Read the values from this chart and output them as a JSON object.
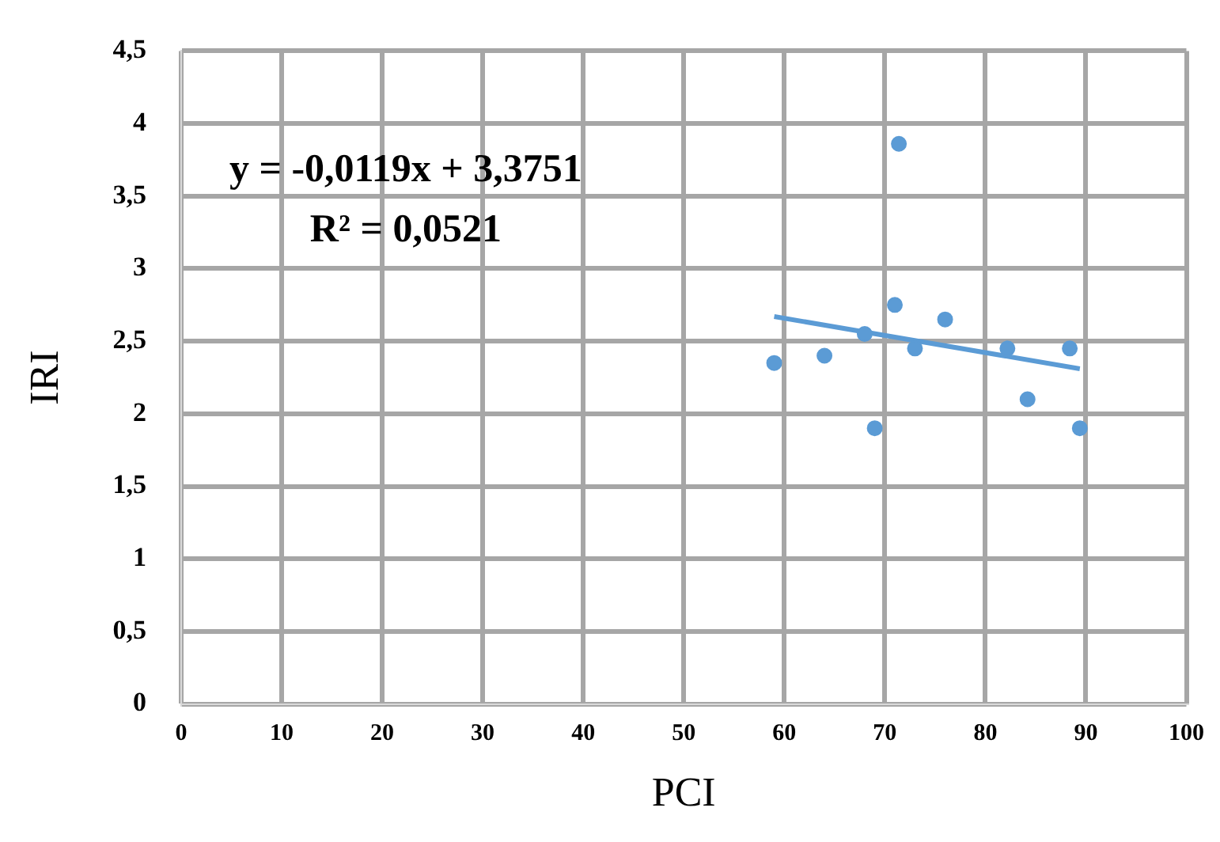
{
  "chart_data": {
    "type": "scatter",
    "xlabel": "PCI",
    "ylabel": "IRI",
    "annotations": [
      "y = -0,0119x + 3,3751",
      "R² = 0,0521"
    ],
    "xlim": [
      0,
      100
    ],
    "xticks": [
      0,
      10,
      20,
      30,
      40,
      50,
      60,
      70,
      80,
      90,
      100
    ],
    "ylim": [
      0,
      4.5
    ],
    "yticks": [
      0,
      {
        "value": 0.5,
        "label": "0,5"
      },
      1,
      {
        "value": 1.5,
        "label": "1,5"
      },
      2,
      {
        "value": 2.5,
        "label": "2,5"
      },
      3,
      {
        "value": 3.5,
        "label": "3,5"
      },
      4,
      {
        "value": 4.5,
        "label": "4,5"
      }
    ],
    "grid": true,
    "legend": false,
    "series": [
      {
        "marker": "circle",
        "color": "#5b9bd5",
        "x": [
          59,
          64,
          68,
          69,
          71,
          71.4,
          73,
          76,
          82.2,
          84.2,
          88.4,
          89.4
        ],
        "values": [
          2.35,
          2.4,
          2.55,
          1.9,
          2.75,
          3.86,
          2.45,
          2.65,
          2.45,
          2.1,
          2.45,
          1.9
        ]
      },
      {
        "type": "line",
        "color": "#5b9bd5",
        "line_style": "solid",
        "x": [
          59,
          89.4
        ],
        "values": [
          2.67,
          2.31
        ]
      }
    ]
  }
}
